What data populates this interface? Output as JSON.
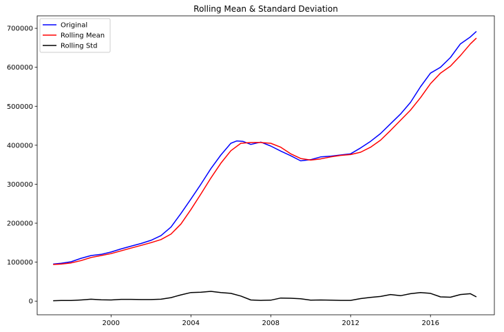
{
  "chart_data": {
    "type": "line",
    "title": "Rolling Mean & Standard Deviation",
    "xlabel": "",
    "ylabel": "",
    "xlim": [
      1996.3,
      2019.2
    ],
    "ylim": [
      -35000,
      732000
    ],
    "x_ticks": [
      2000,
      2004,
      2008,
      2012,
      2016
    ],
    "x_tick_labels": [
      "2000",
      "2004",
      "2008",
      "2012",
      "2016"
    ],
    "y_ticks": [
      0,
      100000,
      200000,
      300000,
      400000,
      500000,
      600000,
      700000
    ],
    "y_tick_labels": [
      "0",
      "100000",
      "200000",
      "300000",
      "400000",
      "500000",
      "600000",
      "700000"
    ],
    "grid": false,
    "legend_position": "top-left",
    "colors": {
      "original": "#0000ff",
      "rolling_mean": "#ff0000",
      "rolling_std": "#000000"
    },
    "series": [
      {
        "name": "Original",
        "color": "#0000ff",
        "x": [
          1997.1,
          1997.5,
          1998,
          1998.5,
          1999,
          1999.5,
          2000,
          2000.5,
          2001,
          2001.5,
          2002,
          2002.5,
          2003,
          2003.5,
          2004,
          2004.5,
          2005,
          2005.5,
          2006,
          2006.3,
          2006.6,
          2007,
          2007.5,
          2008,
          2008.5,
          2009,
          2009.5,
          2010,
          2010.5,
          2011,
          2011.5,
          2012,
          2012.5,
          2013,
          2013.5,
          2014,
          2014.5,
          2015,
          2015.5,
          2016,
          2016.5,
          2017,
          2017.5,
          2018,
          2018.3
        ],
        "values": [
          95000,
          97000,
          101000,
          110000,
          117000,
          120000,
          126000,
          134000,
          141000,
          148000,
          156000,
          168000,
          190000,
          225000,
          262000,
          300000,
          340000,
          375000,
          405000,
          411000,
          410000,
          402000,
          408000,
          398000,
          385000,
          373000,
          360000,
          363000,
          370000,
          372000,
          375000,
          378000,
          393000,
          410000,
          430000,
          455000,
          480000,
          510000,
          550000,
          585000,
          600000,
          625000,
          660000,
          678000,
          692000
        ]
      },
      {
        "name": "Rolling Mean",
        "color": "#ff0000",
        "x": [
          1997.1,
          1997.5,
          1998,
          1998.5,
          1999,
          1999.5,
          2000,
          2000.5,
          2001,
          2001.5,
          2002,
          2002.5,
          2003,
          2003.5,
          2004,
          2004.5,
          2005,
          2005.5,
          2006,
          2006.5,
          2007,
          2007.5,
          2008,
          2008.5,
          2009,
          2009.5,
          2010,
          2010.5,
          2011,
          2011.5,
          2012,
          2012.5,
          2013,
          2013.5,
          2014,
          2014.5,
          2015,
          2015.5,
          2016,
          2016.5,
          2017,
          2017.5,
          2018,
          2018.3
        ],
        "values": [
          94000,
          95000,
          98000,
          104000,
          112000,
          117000,
          122000,
          129000,
          136000,
          143000,
          150000,
          158000,
          172000,
          198000,
          235000,
          275000,
          316000,
          354000,
          386000,
          405000,
          407000,
          407000,
          405000,
          395000,
          378000,
          366000,
          362000,
          365000,
          370000,
          374000,
          376000,
          382000,
          395000,
          413000,
          438000,
          464000,
          490000,
          522000,
          558000,
          585000,
          603000,
          630000,
          660000,
          675000
        ]
      },
      {
        "name": "Rolling Std",
        "color": "#000000",
        "x": [
          1997.1,
          1997.5,
          1998,
          1998.5,
          1999,
          1999.5,
          2000,
          2000.5,
          2001,
          2001.5,
          2002,
          2002.5,
          2003,
          2003.5,
          2004,
          2004.5,
          2005,
          2005.5,
          2006,
          2006.5,
          2007,
          2007.5,
          2008,
          2008.5,
          2009,
          2009.5,
          2010,
          2010.5,
          2011,
          2011.5,
          2012,
          2012.5,
          2013,
          2013.5,
          2014,
          2014.5,
          2015,
          2015.5,
          2016,
          2016.5,
          2017,
          2017.5,
          2018,
          2018.3
        ],
        "values": [
          1000,
          1500,
          1500,
          3000,
          5000,
          3500,
          3000,
          4500,
          4500,
          4000,
          4000,
          5000,
          9000,
          16000,
          22000,
          23000,
          25000,
          22000,
          20000,
          13000,
          3000,
          2000,
          2500,
          8000,
          7500,
          6000,
          2500,
          3000,
          2500,
          2000,
          2000,
          6500,
          9500,
          12000,
          17000,
          14000,
          19000,
          22000,
          20000,
          11000,
          10000,
          17000,
          19000,
          11000
        ]
      }
    ]
  }
}
